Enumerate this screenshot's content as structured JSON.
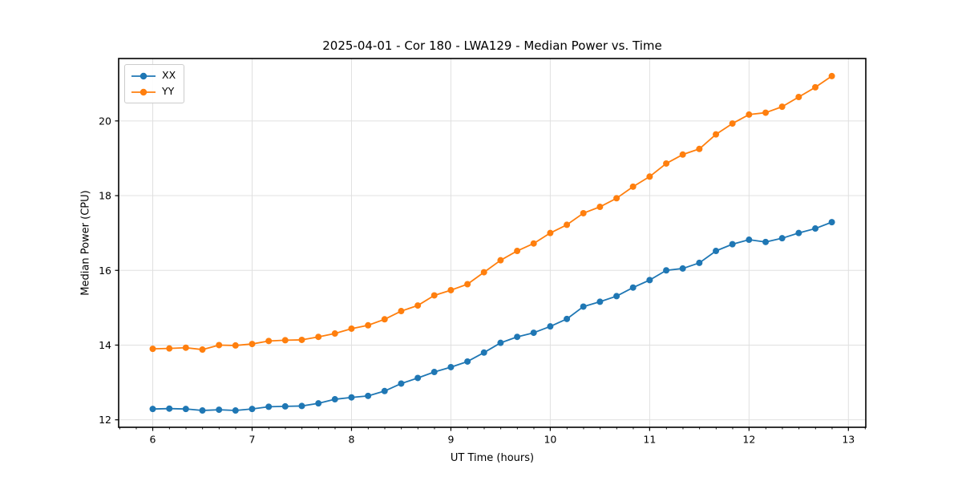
{
  "chart_data": {
    "type": "line",
    "title": "2025-04-01 - Cor 180 - LWA129 - Median Power vs. Time",
    "xlabel": "UT Time (hours)",
    "ylabel": "Median Power (CPU)",
    "xlim": [
      5.657,
      13.175
    ],
    "ylim": [
      11.8,
      21.67
    ],
    "xticks": [
      6,
      7,
      8,
      9,
      10,
      11,
      12,
      13
    ],
    "yticks": [
      12,
      14,
      16,
      18,
      20
    ],
    "x_minor_step": 0.1667,
    "grid": true,
    "grid_color": "#e0e0e0",
    "legend_position": "upper-left",
    "marker": "circle",
    "x": [
      6.0,
      6.167,
      6.333,
      6.5,
      6.667,
      6.833,
      7.0,
      7.167,
      7.333,
      7.5,
      7.667,
      7.833,
      8.0,
      8.167,
      8.333,
      8.5,
      8.667,
      8.833,
      9.0,
      9.167,
      9.333,
      9.5,
      9.667,
      9.833,
      10.0,
      10.167,
      10.333,
      10.5,
      10.667,
      10.833,
      11.0,
      11.167,
      11.333,
      11.5,
      11.667,
      11.833,
      12.0,
      12.167,
      12.333,
      12.5,
      12.667,
      12.833
    ],
    "series": [
      {
        "name": "XX",
        "color": "#1f77b4",
        "values": [
          12.29,
          12.3,
          12.29,
          12.25,
          12.27,
          12.25,
          12.29,
          12.35,
          12.36,
          12.37,
          12.44,
          12.55,
          12.6,
          12.64,
          12.77,
          12.97,
          13.12,
          13.28,
          13.41,
          13.56,
          13.8,
          14.06,
          14.22,
          14.33,
          14.5,
          14.7,
          15.03,
          15.16,
          15.31,
          15.54,
          15.74,
          16.0,
          16.05,
          16.2,
          16.52,
          16.7,
          16.82,
          16.76,
          16.86,
          17.0,
          17.12,
          17.29
        ]
      },
      {
        "name": "YY",
        "color": "#ff7f0e",
        "values": [
          13.9,
          13.91,
          13.93,
          13.88,
          14.0,
          13.99,
          14.03,
          14.11,
          14.13,
          14.14,
          14.22,
          14.31,
          14.44,
          14.53,
          14.69,
          14.91,
          15.06,
          15.33,
          15.47,
          15.63,
          15.95,
          16.27,
          16.52,
          16.72,
          17.0,
          17.22,
          17.53,
          17.7,
          17.93,
          18.24,
          18.51,
          18.86,
          19.1,
          19.25,
          19.64,
          19.93,
          20.17,
          20.22,
          20.38,
          20.64,
          20.9,
          21.2
        ]
      }
    ]
  }
}
